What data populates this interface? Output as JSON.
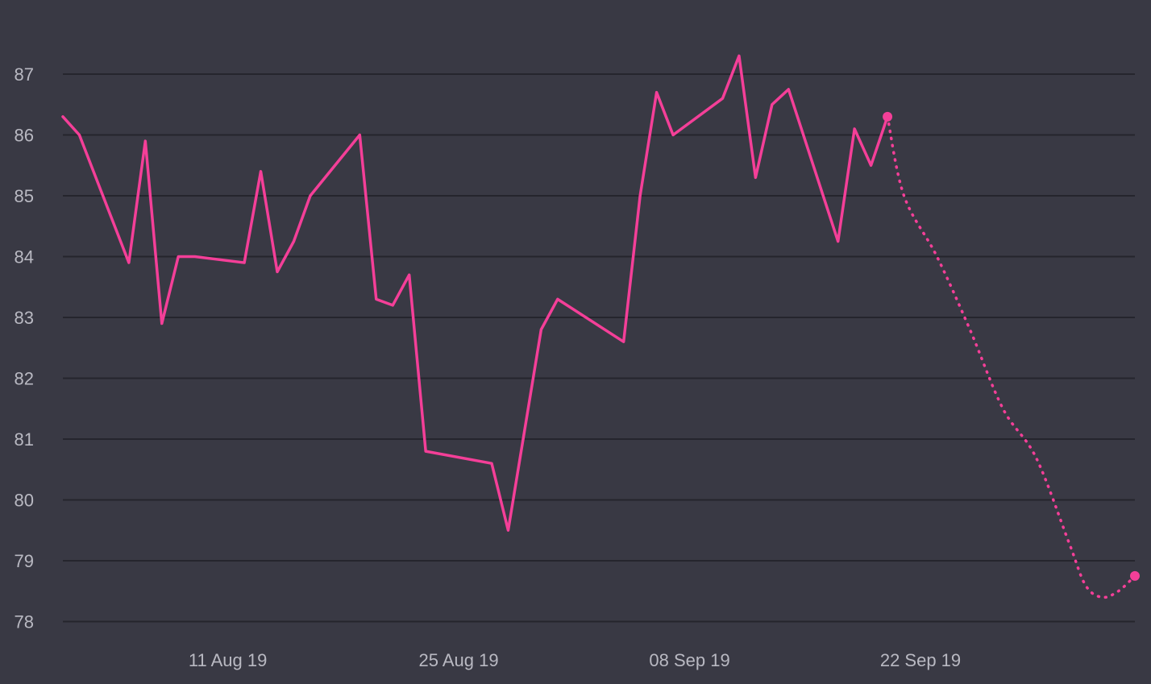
{
  "chart_data": {
    "type": "line",
    "title": "",
    "xlabel": "",
    "ylabel": "",
    "x_range": [
      "2019-08-01",
      "2019-10-05"
    ],
    "ylim": [
      77.7,
      88
    ],
    "y_ticks": [
      78,
      79,
      80,
      81,
      82,
      83,
      84,
      85,
      86,
      87
    ],
    "x_ticks": [
      {
        "date": "2019-08-11",
        "label": "11 Aug 19"
      },
      {
        "date": "2019-08-25",
        "label": "25 Aug 19"
      },
      {
        "date": "2019-09-08",
        "label": "08 Sep 19"
      },
      {
        "date": "2019-09-22",
        "label": "22 Sep 19"
      }
    ],
    "grid": true,
    "legend": "none",
    "colors": {
      "series": "#f43f98",
      "background": "#393944",
      "grid": "#25252d",
      "text": "#b9b9c2"
    },
    "series": [
      {
        "style": "solid",
        "points": [
          {
            "x": "2019-08-01",
            "y": 86.3
          },
          {
            "x": "2019-08-02",
            "y": 86.0
          },
          {
            "x": "2019-08-05",
            "y": 83.9
          },
          {
            "x": "2019-08-06",
            "y": 85.9
          },
          {
            "x": "2019-08-07",
            "y": 82.9
          },
          {
            "x": "2019-08-08",
            "y": 84.0
          },
          {
            "x": "2019-08-09",
            "y": 84.0
          },
          {
            "x": "2019-08-12",
            "y": 83.9
          },
          {
            "x": "2019-08-13",
            "y": 85.4
          },
          {
            "x": "2019-08-14",
            "y": 83.75
          },
          {
            "x": "2019-08-15",
            "y": 84.25
          },
          {
            "x": "2019-08-16",
            "y": 85.0
          },
          {
            "x": "2019-08-19",
            "y": 86.0
          },
          {
            "x": "2019-08-20",
            "y": 83.3
          },
          {
            "x": "2019-08-21",
            "y": 83.2
          },
          {
            "x": "2019-08-22",
            "y": 83.7
          },
          {
            "x": "2019-08-23",
            "y": 80.8
          },
          {
            "x": "2019-08-27",
            "y": 80.6
          },
          {
            "x": "2019-08-28",
            "y": 79.5
          },
          {
            "x": "2019-08-30",
            "y": 82.8
          },
          {
            "x": "2019-08-31",
            "y": 83.3
          },
          {
            "x": "2019-09-04",
            "y": 82.6
          },
          {
            "x": "2019-09-05",
            "y": 85.0
          },
          {
            "x": "2019-09-06",
            "y": 86.7
          },
          {
            "x": "2019-09-07",
            "y": 86.0
          },
          {
            "x": "2019-09-10",
            "y": 86.6
          },
          {
            "x": "2019-09-11",
            "y": 87.3
          },
          {
            "x": "2019-09-12",
            "y": 85.3
          },
          {
            "x": "2019-09-13",
            "y": 86.5
          },
          {
            "x": "2019-09-14",
            "y": 86.75
          },
          {
            "x": "2019-09-17",
            "y": 84.25
          },
          {
            "x": "2019-09-18",
            "y": 86.1
          },
          {
            "x": "2019-09-19",
            "y": 85.5
          },
          {
            "x": "2019-09-20",
            "y": 86.3
          }
        ]
      },
      {
        "style": "dotted",
        "points": [
          {
            "x": "2019-09-20",
            "y": 86.3
          },
          {
            "x": "2019-09-21",
            "y": 85.0
          },
          {
            "x": "2019-09-23",
            "y": 84.0
          },
          {
            "x": "2019-09-25",
            "y": 82.8
          },
          {
            "x": "2019-09-27",
            "y": 81.5
          },
          {
            "x": "2019-09-29",
            "y": 80.7
          },
          {
            "x": "2019-10-01",
            "y": 79.3
          },
          {
            "x": "2019-10-02",
            "y": 78.6
          },
          {
            "x": "2019-10-03",
            "y": 78.4
          },
          {
            "x": "2019-10-04",
            "y": 78.5
          },
          {
            "x": "2019-10-05",
            "y": 78.75
          }
        ]
      }
    ]
  }
}
